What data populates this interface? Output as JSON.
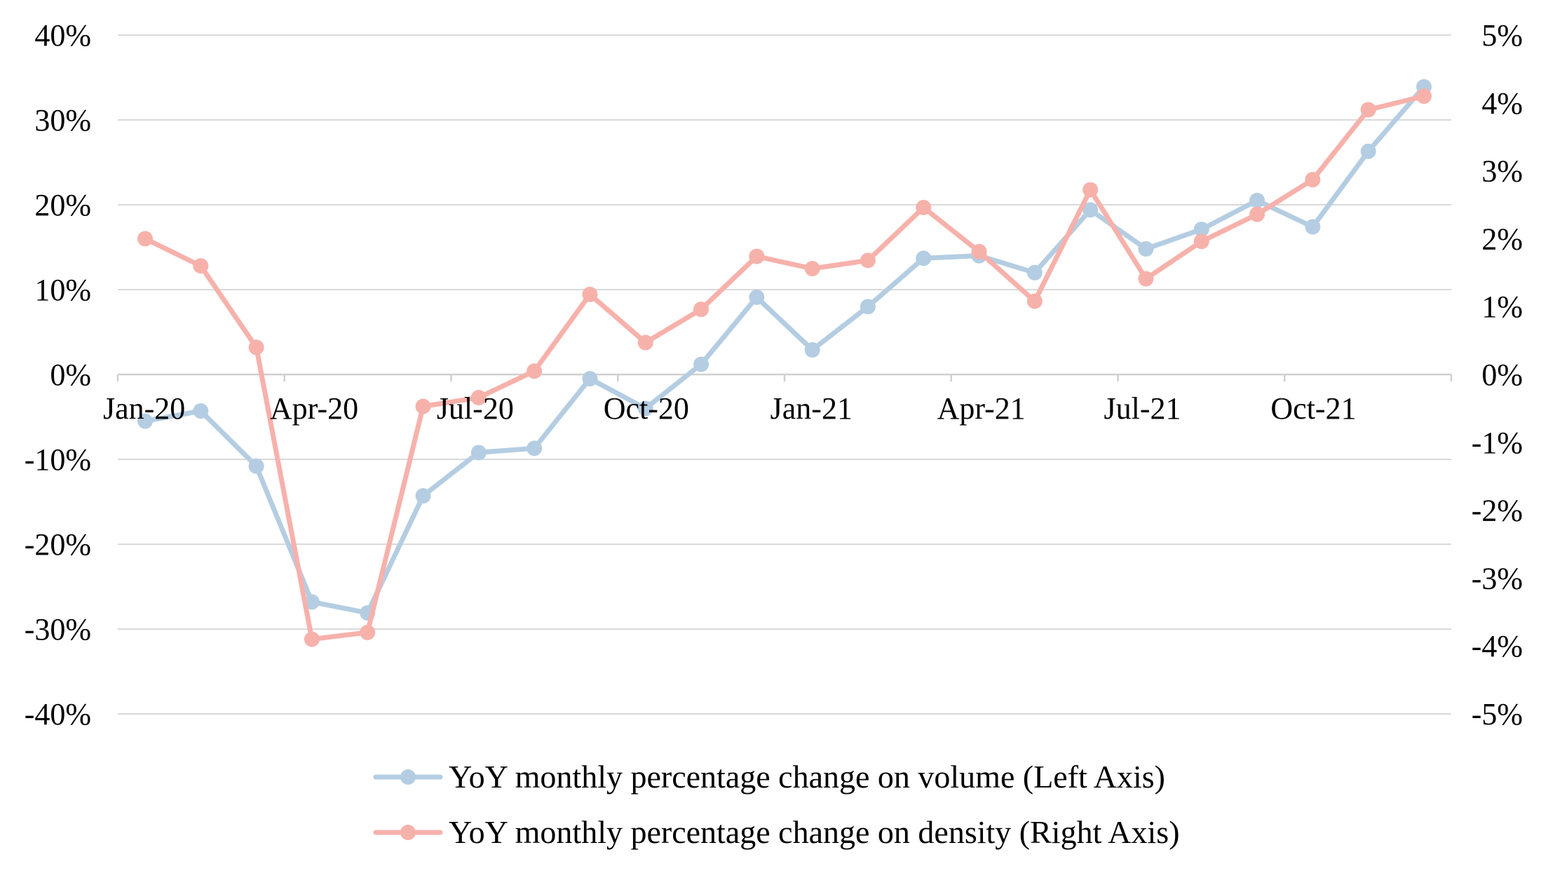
{
  "chart_data": {
    "type": "line",
    "title": "",
    "xlabel": "",
    "ylabel": "",
    "x": [
      "Jan-20",
      "Feb-20",
      "Mar-20",
      "Apr-20",
      "May-20",
      "Jun-20",
      "Jul-20",
      "Aug-20",
      "Sep-20",
      "Oct-20",
      "Nov-20",
      "Dec-20",
      "Jan-21",
      "Feb-21",
      "Mar-21",
      "Apr-21",
      "May-21",
      "Jun-21",
      "Jul-21",
      "Aug-21",
      "Sep-21",
      "Oct-21",
      "Nov-21",
      "Dec-21"
    ],
    "x_tick_labels": [
      "Jan-20",
      "Apr-20",
      "Jul-20",
      "Oct-20",
      "Jan-21",
      "Apr-21",
      "Jul-21",
      "Oct-21"
    ],
    "x_tick_indices": [
      0,
      3,
      6,
      9,
      12,
      15,
      18,
      21
    ],
    "left_axis": {
      "ylim": [
        -40,
        40
      ],
      "tick_values": [
        40,
        30,
        20,
        10,
        0,
        -10,
        -20,
        -30,
        -40
      ],
      "tick_labels": [
        "40%",
        "30%",
        "20%",
        "10%",
        "0%",
        "-10%",
        "-20%",
        "-30%",
        "-40%"
      ]
    },
    "right_axis": {
      "ylim": [
        -5,
        5
      ],
      "tick_values": [
        5,
        4,
        3,
        2,
        1,
        0,
        -1,
        -2,
        -3,
        -4,
        -5
      ],
      "tick_labels": [
        "5%",
        "4%",
        "3%",
        "2%",
        "1%",
        "0%",
        "-1%",
        "-2%",
        "-3%",
        "-4%",
        "-5%"
      ]
    },
    "grid": true,
    "legend_position": "bottom-center",
    "series": [
      {
        "name": "YoY monthly percentage change on volume (Left Axis)",
        "axis": "left",
        "color": "#b4cde2",
        "values": [
          -5.5,
          -4.3,
          -10.8,
          -26.8,
          -28.1,
          -14.3,
          -9.2,
          -8.7,
          -0.5,
          -4.0,
          1.2,
          9.1,
          2.9,
          8.0,
          13.7,
          14.0,
          12.0,
          19.4,
          14.8,
          17.1,
          20.5,
          17.4,
          26.3,
          33.9
        ]
      },
      {
        "name": "YoY monthly percentage change on density (Right Axis)",
        "axis": "right",
        "color": "#f7b1ab",
        "values": [
          2.0,
          1.6,
          0.4,
          -3.9,
          -3.8,
          -0.47,
          -0.34,
          0.05,
          1.18,
          0.47,
          0.96,
          1.74,
          1.56,
          1.68,
          2.46,
          1.81,
          1.08,
          2.72,
          1.41,
          1.96,
          2.36,
          2.87,
          3.9,
          4.1
        ]
      }
    ]
  }
}
